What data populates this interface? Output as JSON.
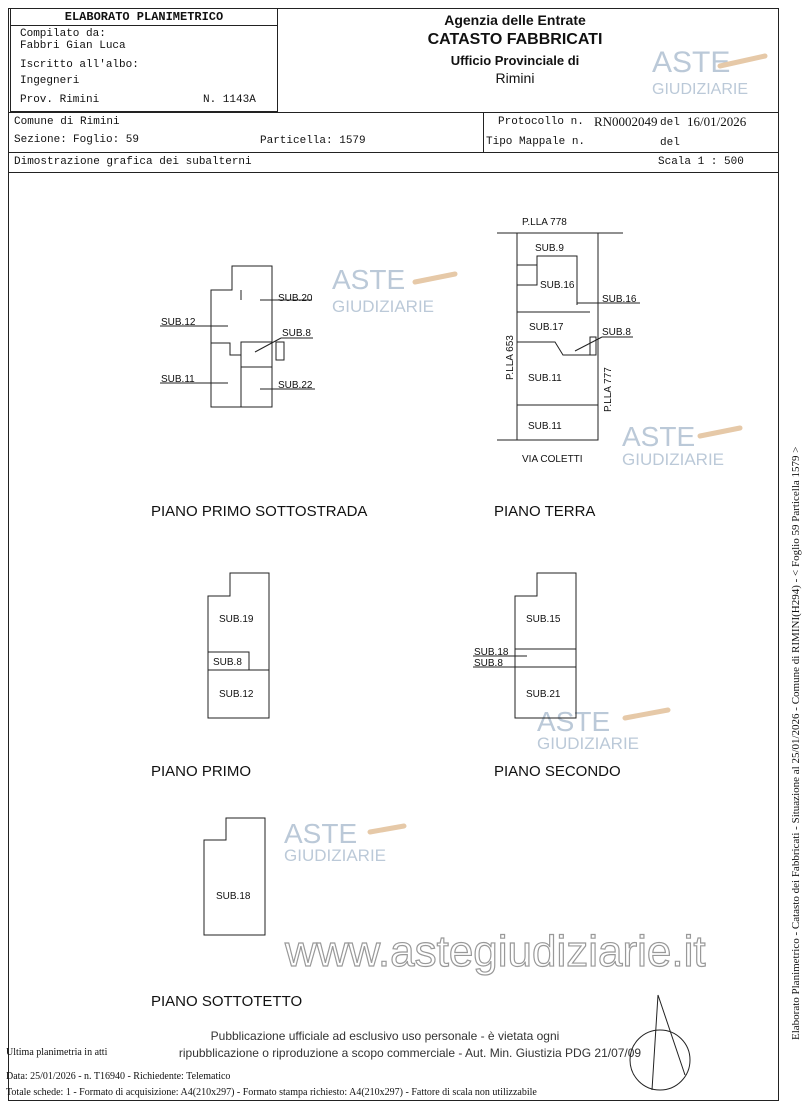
{
  "header": {
    "doc_title": "ELABORATO PLANIMETRICO",
    "compiled_by_label": "Compilato da:",
    "compiled_by": "Fabbri Gian Luca",
    "register_label": "Iscritto all'albo:",
    "register": "Ingegneri",
    "province": "Prov. Rimini",
    "number": "N. 1143A",
    "agency": "Agenzia delle Entrate",
    "registry": "CATASTO FABBRICATI",
    "office": "Ufficio Provinciale di",
    "office_city": "Rimini"
  },
  "info": {
    "comune": "Comune di Rimini",
    "sezione": "Sezione:",
    "foglio": "Foglio: 59",
    "particella": "Particella: 1579",
    "protocollo_label": "Protocollo n.",
    "protocollo": "RN0002049",
    "del_label": "del",
    "protocollo_date": "16/01/2026",
    "tipo_mappale": "Tipo Mappale n.",
    "del2": "del",
    "description": "Dimostrazione grafica dei subalterni",
    "scale": "Scala 1 : 500"
  },
  "plans": {
    "sottostrada": {
      "title": "PIANO PRIMO SOTTOSTRADA",
      "labels": [
        "SUB.20",
        "SUB.12",
        "SUB.8",
        "SUB.11",
        "SUB.22"
      ]
    },
    "terra": {
      "title": "PIANO TERRA",
      "top": "P.LLA 778",
      "left": "P.LLA 653",
      "right": "P.LLA 777",
      "street": "VIA COLETTI",
      "labels": [
        "SUB.9",
        "SUB.16",
        "SUB.16",
        "SUB.17",
        "SUB.8",
        "SUB.11",
        "SUB.11"
      ]
    },
    "primo": {
      "title": "PIANO PRIMO",
      "labels": [
        "SUB.19",
        "SUB.8",
        "SUB.12"
      ]
    },
    "secondo": {
      "title": "PIANO SECONDO",
      "labels": [
        "SUB.15",
        "SUB.18",
        "SUB.8",
        "SUB.21"
      ]
    },
    "sottotetto": {
      "title": "PIANO SOTTOTETTO",
      "labels": [
        "SUB.18"
      ]
    }
  },
  "watermark": {
    "brand_top": "ASTE",
    "brand_bottom": "GIUDIZIARIE",
    "site": "www.astegiudiziarie.it"
  },
  "footer": {
    "last_plan": "Ultima planimetria in atti",
    "notice_line1": "Pubblicazione ufficiale ad esclusivo uso personale - è vietata ogni",
    "notice_line2": "ripubblicazione o riproduzione a scopo commerciale - Aut. Min. Giustizia PDG 21/07/09",
    "data_line": "Data: 25/01/2026 - n. T16940 - Richiedente: Telematico",
    "totals_line": "Totale schede: 1 - Formato di acquisizione: A4(210x297)  - Formato stampa richiesto: A4(210x297) - Fattore di scala non utilizzabile"
  },
  "side_text": "Elaborato Planimetrico - Catasto dei Fabbricati - Situazione al 25/01/2026 - Comune di RIMINI(H294) - < Foglio 59 Particella 1579 >"
}
